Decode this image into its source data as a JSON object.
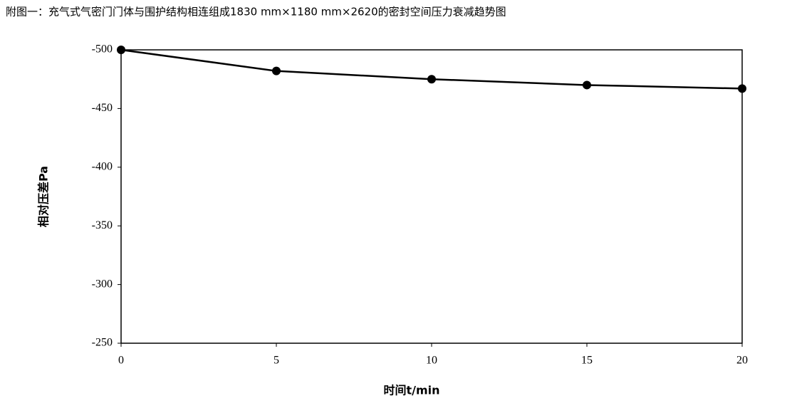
{
  "chart_data": {
    "type": "line",
    "title": "附图一：充气式气密门门体与围护结构相连组成1830 mm×1180 mm×2620的密封空间压力衰减趋势图",
    "x_label": "时间t/min",
    "y_label": "相对压差Pa",
    "x": [
      0,
      5,
      10,
      15,
      20
    ],
    "series": [
      {
        "name": "相对压差",
        "color": "#000000",
        "values": [
          -500,
          -482,
          -475,
          -470,
          -467
        ]
      }
    ],
    "xlim": [
      0,
      20
    ],
    "xticks": [
      0,
      5,
      10,
      15,
      20
    ],
    "ylim": [
      -500,
      -250
    ],
    "yticks": [
      -500,
      -450,
      -400,
      -350,
      -300,
      -250
    ],
    "y_inverted": true,
    "grid": false,
    "legend": false
  }
}
